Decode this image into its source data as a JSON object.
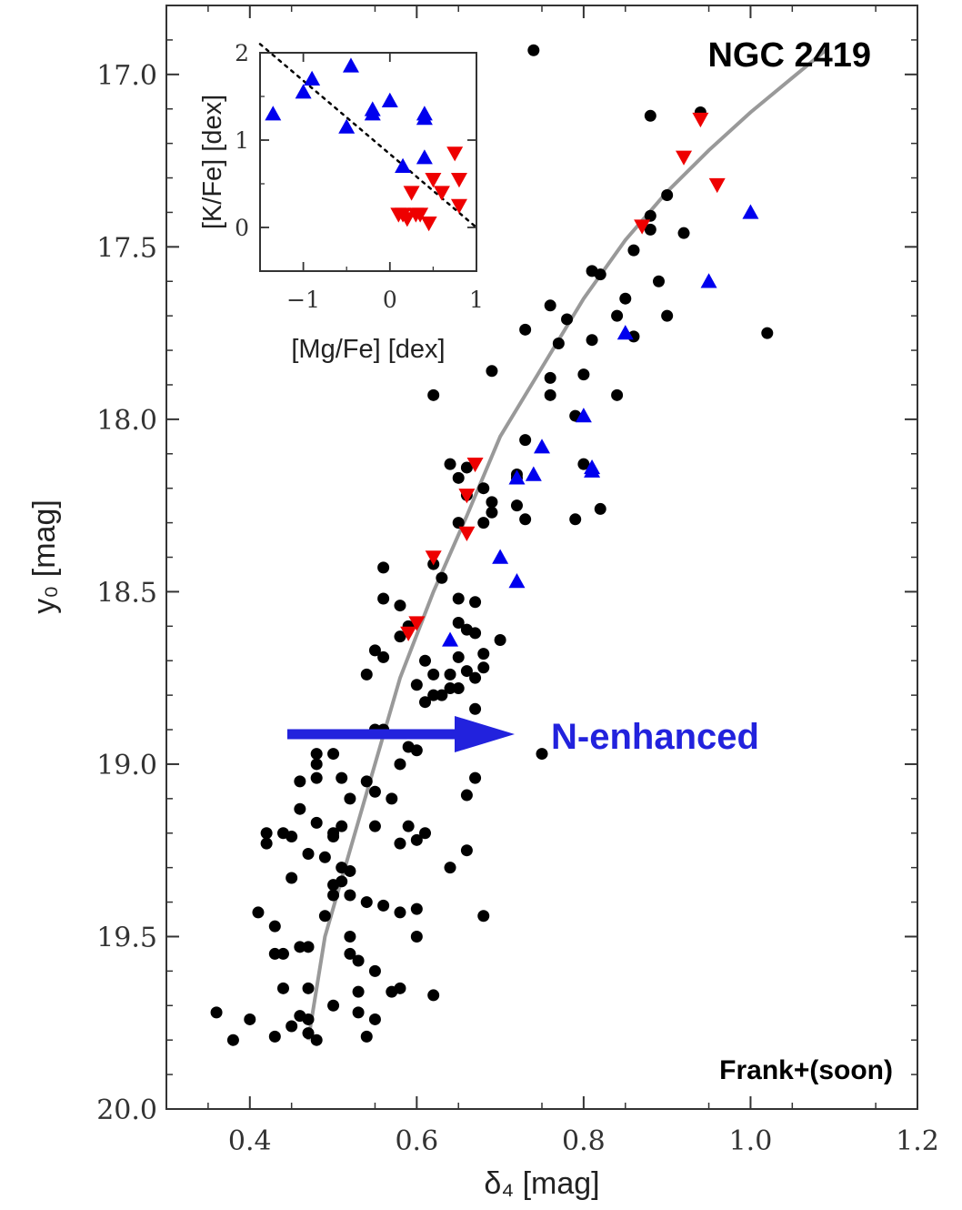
{
  "chart_data": [
    {
      "type": "scatter",
      "xlabel": "δ₄ [mag]",
      "ylabel": "y₀ [mag]",
      "xlim": [
        0.3,
        1.2
      ],
      "ylim": [
        20.0,
        16.8
      ],
      "y_inverted": true,
      "xticks": [
        "0.4",
        "0.6",
        "0.8",
        "1.0",
        "1.2"
      ],
      "yticks": [
        "17.0",
        "17.5",
        "18.0",
        "18.5",
        "19.0",
        "19.5",
        "20.0"
      ],
      "grid": false,
      "annotations": {
        "cluster": "NGC 2419",
        "arrow_label": "N-enhanced",
        "credit": "Frank+(soon)"
      },
      "series": [
        {
          "marker": "circle",
          "color": "#000000",
          "points": [
            [
              0.36,
              19.72
            ],
            [
              0.38,
              19.8
            ],
            [
              0.4,
              19.74
            ],
            [
              0.41,
              19.43
            ],
            [
              0.42,
              19.23
            ],
            [
              0.42,
              19.2
            ],
            [
              0.43,
              19.47
            ],
            [
              0.43,
              19.55
            ],
            [
              0.44,
              19.55
            ],
            [
              0.43,
              19.79
            ],
            [
              0.44,
              19.2
            ],
            [
              0.45,
              19.21
            ],
            [
              0.46,
              19.05
            ],
            [
              0.45,
              19.33
            ],
            [
              0.44,
              19.65
            ],
            [
              0.45,
              19.76
            ],
            [
              0.46,
              19.53
            ],
            [
              0.46,
              19.13
            ],
            [
              0.47,
              19.26
            ],
            [
              0.47,
              19.53
            ],
            [
              0.47,
              19.65
            ],
            [
              0.46,
              19.73
            ],
            [
              0.47,
              19.78
            ],
            [
              0.48,
              19.0
            ],
            [
              0.48,
              19.04
            ],
            [
              0.48,
              19.17
            ],
            [
              0.48,
              18.97
            ],
            [
              0.47,
              19.74
            ],
            [
              0.48,
              19.8
            ],
            [
              0.49,
              19.27
            ],
            [
              0.49,
              19.44
            ],
            [
              0.5,
              19.35
            ],
            [
              0.5,
              19.7
            ],
            [
              0.5,
              19.2
            ],
            [
              0.5,
              19.38
            ],
            [
              0.5,
              18.97
            ],
            [
              0.5,
              19.21
            ],
            [
              0.51,
              19.04
            ],
            [
              0.51,
              19.18
            ],
            [
              0.51,
              19.3
            ],
            [
              0.51,
              19.34
            ],
            [
              0.52,
              19.1
            ],
            [
              0.52,
              19.38
            ],
            [
              0.52,
              19.5
            ],
            [
              0.52,
              19.55
            ],
            [
              0.52,
              19.31
            ],
            [
              0.53,
              19.57
            ],
            [
              0.53,
              19.66
            ],
            [
              0.53,
              19.72
            ],
            [
              0.54,
              19.79
            ],
            [
              0.54,
              19.05
            ],
            [
              0.54,
              19.4
            ],
            [
              0.55,
              19.18
            ],
            [
              0.55,
              19.6
            ],
            [
              0.55,
              19.74
            ],
            [
              0.55,
              18.9
            ],
            [
              0.55,
              19.08
            ],
            [
              0.54,
              18.74
            ],
            [
              0.55,
              18.67
            ],
            [
              0.56,
              18.52
            ],
            [
              0.56,
              18.69
            ],
            [
              0.56,
              18.43
            ],
            [
              0.56,
              18.9
            ],
            [
              0.56,
              19.41
            ],
            [
              0.57,
              19.1
            ],
            [
              0.57,
              19.66
            ],
            [
              0.58,
              18.54
            ],
            [
              0.58,
              18.63
            ],
            [
              0.58,
              19.0
            ],
            [
              0.58,
              19.23
            ],
            [
              0.58,
              19.43
            ],
            [
              0.58,
              19.65
            ],
            [
              0.59,
              18.6
            ],
            [
              0.59,
              18.95
            ],
            [
              0.59,
              19.18
            ],
            [
              0.6,
              18.96
            ],
            [
              0.6,
              18.77
            ],
            [
              0.6,
              19.42
            ],
            [
              0.6,
              19.5
            ],
            [
              0.6,
              19.22
            ],
            [
              0.61,
              18.7
            ],
            [
              0.61,
              18.82
            ],
            [
              0.62,
              18.8
            ],
            [
              0.61,
              19.2
            ],
            [
              0.62,
              19.67
            ],
            [
              0.62,
              18.42
            ],
            [
              0.62,
              18.74
            ],
            [
              0.63,
              18.46
            ],
            [
              0.63,
              18.8
            ],
            [
              0.64,
              18.74
            ],
            [
              0.64,
              18.78
            ],
            [
              0.64,
              18.13
            ],
            [
              0.64,
              19.3
            ],
            [
              0.65,
              18.17
            ],
            [
              0.65,
              18.3
            ],
            [
              0.65,
              18.52
            ],
            [
              0.65,
              18.59
            ],
            [
              0.65,
              18.69
            ],
            [
              0.65,
              18.78
            ],
            [
              0.66,
              18.73
            ],
            [
              0.66,
              18.61
            ],
            [
              0.66,
              18.14
            ],
            [
              0.66,
              18.22
            ],
            [
              0.66,
              19.09
            ],
            [
              0.66,
              19.25
            ],
            [
              0.67,
              18.75
            ],
            [
              0.67,
              18.84
            ],
            [
              0.67,
              19.04
            ],
            [
              0.67,
              18.53
            ],
            [
              0.67,
              18.62
            ],
            [
              0.68,
              18.68
            ],
            [
              0.68,
              18.72
            ],
            [
              0.68,
              18.3
            ],
            [
              0.68,
              18.2
            ],
            [
              0.68,
              19.44
            ],
            [
              0.62,
              17.93
            ],
            [
              0.69,
              17.86
            ],
            [
              0.69,
              18.27
            ],
            [
              0.69,
              18.24
            ],
            [
              0.7,
              18.64
            ],
            [
              0.72,
              18.16
            ],
            [
              0.72,
              18.17
            ],
            [
              0.72,
              18.25
            ],
            [
              0.73,
              18.29
            ],
            [
              0.73,
              18.06
            ],
            [
              0.73,
              17.74
            ],
            [
              0.74,
              16.93
            ],
            [
              0.75,
              18.97
            ],
            [
              0.76,
              17.67
            ],
            [
              0.76,
              17.88
            ],
            [
              0.76,
              17.93
            ],
            [
              0.77,
              17.78
            ],
            [
              0.78,
              17.71
            ],
            [
              0.79,
              17.99
            ],
            [
              0.79,
              18.29
            ],
            [
              0.8,
              17.87
            ],
            [
              0.8,
              18.13
            ],
            [
              0.81,
              17.57
            ],
            [
              0.81,
              17.77
            ],
            [
              0.82,
              18.26
            ],
            [
              0.82,
              17.58
            ],
            [
              0.84,
              17.93
            ],
            [
              0.84,
              17.7
            ],
            [
              0.85,
              17.65
            ],
            [
              0.86,
              17.51
            ],
            [
              0.86,
              17.76
            ],
            [
              0.88,
              17.12
            ],
            [
              0.88,
              17.41
            ],
            [
              0.88,
              17.45
            ],
            [
              0.89,
              17.6
            ],
            [
              0.9,
              17.35
            ],
            [
              0.9,
              17.7
            ],
            [
              0.92,
              17.46
            ],
            [
              0.94,
              17.11
            ],
            [
              1.02,
              17.75
            ]
          ]
        },
        {
          "marker": "triangle-up",
          "color": "#0000ee",
          "points": [
            [
              0.64,
              18.64
            ],
            [
              0.7,
              18.4
            ],
            [
              0.72,
              18.17
            ],
            [
              0.72,
              18.47
            ],
            [
              0.74,
              18.16
            ],
            [
              0.75,
              18.08
            ],
            [
              0.8,
              17.99
            ],
            [
              0.81,
              18.14
            ],
            [
              0.81,
              18.15
            ],
            [
              0.85,
              17.75
            ],
            [
              0.95,
              17.6
            ],
            [
              1.0,
              17.4
            ]
          ]
        },
        {
          "marker": "triangle-down",
          "color": "#ee0000",
          "points": [
            [
              0.59,
              18.62
            ],
            [
              0.6,
              18.59
            ],
            [
              0.62,
              18.4
            ],
            [
              0.66,
              18.22
            ],
            [
              0.66,
              18.33
            ],
            [
              0.67,
              18.13
            ],
            [
              0.87,
              17.44
            ],
            [
              0.92,
              17.24
            ],
            [
              0.94,
              17.13
            ],
            [
              0.96,
              17.32
            ]
          ]
        },
        {
          "type": "line",
          "style": "solid",
          "color": "#999999",
          "name": "",
          "x": [
            0.47,
            0.49,
            0.52,
            0.55,
            0.58,
            0.62,
            0.66,
            0.7,
            0.75,
            0.8,
            0.85,
            0.9,
            0.95,
            1.0,
            1.05,
            1.09
          ],
          "y": [
            19.8,
            19.5,
            19.25,
            19.0,
            18.75,
            18.5,
            18.28,
            18.05,
            17.85,
            17.65,
            17.48,
            17.34,
            17.22,
            17.11,
            17.01,
            16.93
          ]
        }
      ]
    },
    {
      "type": "scatter",
      "inset": true,
      "xlabel": "[Mg/Fe] [dex]",
      "ylabel": "[K/Fe] [dex]",
      "xlim": [
        -1.5,
        1.0
      ],
      "ylim": [
        -0.5,
        2.0
      ],
      "xticks": [
        "−1",
        "0",
        "1"
      ],
      "yticks": [
        "0",
        "1",
        "2"
      ],
      "series": [
        {
          "marker": "triangle-up",
          "color": "#0000ee",
          "points": [
            [
              -1.35,
              1.3
            ],
            [
              -1.0,
              1.55
            ],
            [
              -0.9,
              1.7
            ],
            [
              -0.5,
              1.15
            ],
            [
              -0.45,
              1.85
            ],
            [
              -0.2,
              1.3
            ],
            [
              -0.2,
              1.35
            ],
            [
              0.0,
              1.45
            ],
            [
              0.15,
              0.7
            ],
            [
              0.4,
              1.3
            ],
            [
              0.4,
              1.25
            ],
            [
              0.4,
              0.8
            ]
          ]
        },
        {
          "marker": "triangle-down",
          "color": "#ee0000",
          "points": [
            [
              0.1,
              0.15
            ],
            [
              0.15,
              0.15
            ],
            [
              0.2,
              0.1
            ],
            [
              0.25,
              0.4
            ],
            [
              0.3,
              0.15
            ],
            [
              0.35,
              0.15
            ],
            [
              0.45,
              0.05
            ],
            [
              0.5,
              0.55
            ],
            [
              0.6,
              0.4
            ],
            [
              0.75,
              0.85
            ],
            [
              0.8,
              0.55
            ],
            [
              0.8,
              0.25
            ]
          ]
        },
        {
          "type": "line",
          "style": "dotted",
          "color": "#000000",
          "name": "",
          "x": [
            -1.5,
            1.0
          ],
          "y": [
            2.1,
            0.0
          ]
        }
      ]
    }
  ]
}
